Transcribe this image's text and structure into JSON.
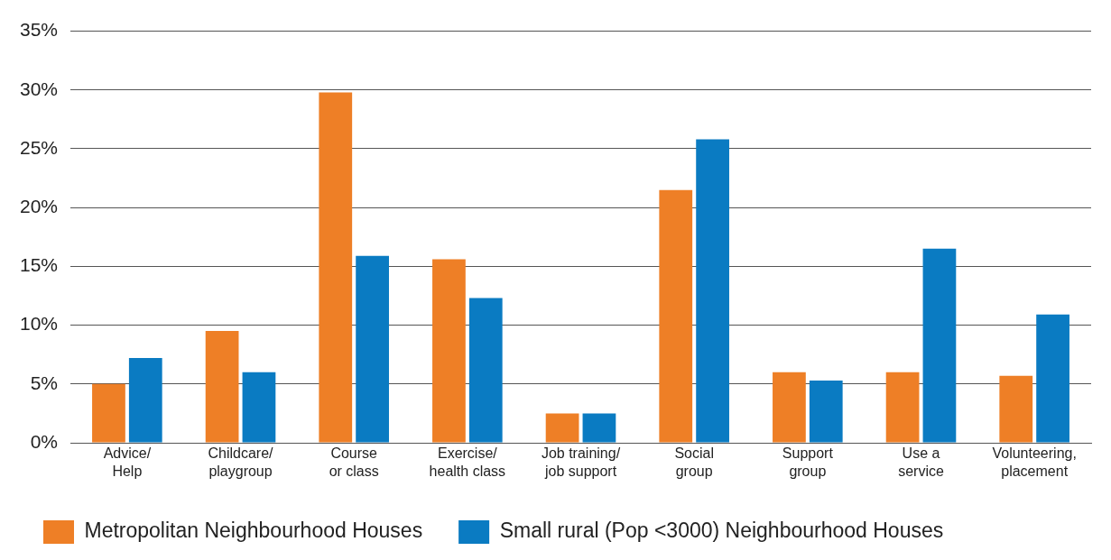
{
  "chart_data": {
    "type": "bar",
    "categories": [
      "Advice/\nHelp",
      "Childcare/\nplaygroup",
      "Course\nor class",
      "Exercise/\nhealth class",
      "Job training/\njob support",
      "Social\ngroup",
      "Support\ngroup",
      "Use a\nservice",
      "Volunteering,\nplacement"
    ],
    "series": [
      {
        "name": "Metropolitan Neighbourhood Houses",
        "color": "#ee7f26",
        "values": [
          5,
          9.5,
          29.8,
          15.6,
          2.5,
          21.5,
          6,
          6,
          5.7
        ]
      },
      {
        "name": "Small rural (Pop <3000) Neighbourhood Houses",
        "color": "#0a7bc2",
        "values": [
          7.2,
          6,
          15.9,
          12.3,
          2.5,
          25.8,
          5.3,
          16.5,
          10.9
        ]
      }
    ],
    "ylim": [
      0,
      35
    ],
    "yticks": [
      {
        "value": 0,
        "label": "0%"
      },
      {
        "value": 5,
        "label": "5%"
      },
      {
        "value": 10,
        "label": "10%"
      },
      {
        "value": 15,
        "label": "15%"
      },
      {
        "value": 20,
        "label": "20%"
      },
      {
        "value": 25,
        "label": "25%"
      },
      {
        "value": 30,
        "label": "30%"
      },
      {
        "value": 35,
        "label": "35%"
      }
    ],
    "grid": "y",
    "legend": "bottom"
  }
}
